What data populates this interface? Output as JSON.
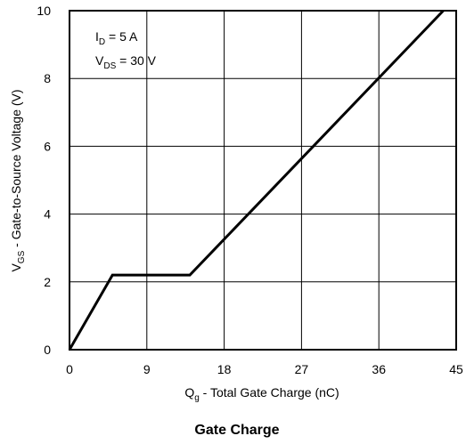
{
  "chart_data": {
    "type": "line",
    "title": "Gate Charge",
    "xlabel": {
      "main": "Q",
      "sub": "g",
      "rest": " - Total Gate Charge (nC)"
    },
    "ylabel": {
      "main": "V",
      "sub": "GS",
      "rest": " - Gate-to-Source Voltage (V)"
    },
    "xlim": [
      0,
      45
    ],
    "ylim": [
      0,
      10
    ],
    "xticks": [
      0,
      9,
      18,
      27,
      36,
      45
    ],
    "yticks": [
      0,
      2,
      4,
      6,
      8,
      10
    ],
    "grid": true,
    "annotations": [
      {
        "main": "I",
        "sub": "D",
        "rest": " = 5 A"
      },
      {
        "main": "V",
        "sub": "DS",
        "rest": " = 30 V"
      }
    ],
    "series": [
      {
        "x": [
          0,
          5.0,
          14.0,
          43.5
        ],
        "y": [
          0,
          2.2,
          2.2,
          10
        ]
      }
    ]
  }
}
